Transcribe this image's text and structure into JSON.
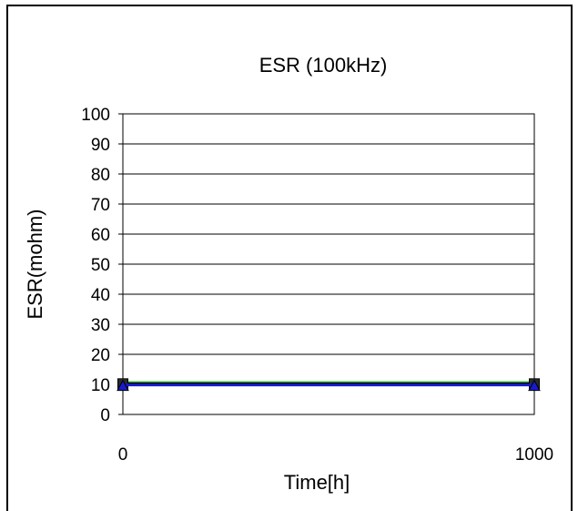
{
  "chart_data": {
    "type": "line",
    "title": "ESR (100kHz)",
    "xlabel": "Time[h]",
    "ylabel": "ESR(mohm)",
    "x": [
      0,
      1000
    ],
    "x_tick_labels": [
      "0",
      "1000"
    ],
    "ylim": [
      0,
      100
    ],
    "y_ticks": [
      0,
      10,
      20,
      30,
      40,
      50,
      60,
      70,
      80,
      90,
      100
    ],
    "grid": "horizontal",
    "series": [
      {
        "values": [
          10.6,
          10.6
        ],
        "color": "#33cc33",
        "marker": "none"
      },
      {
        "values": [
          10.2,
          10.2
        ],
        "color": "#000000",
        "marker": "square"
      },
      {
        "values": [
          9.8,
          9.8
        ],
        "color": "#1a1acc",
        "marker": "triangle"
      }
    ]
  }
}
